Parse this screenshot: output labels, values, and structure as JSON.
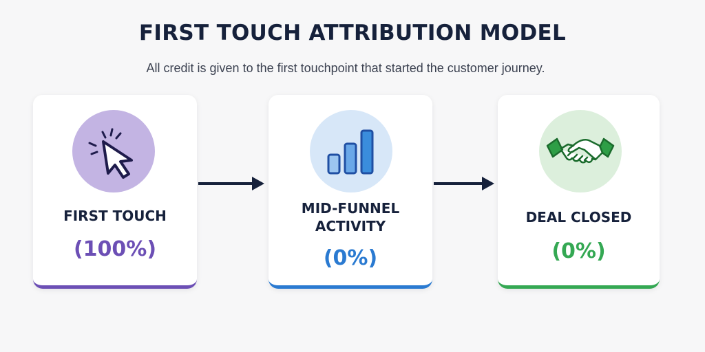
{
  "title": "FIRST TOUCH ATTRIBUTION MODEL",
  "subtitle": "All credit is given to the first touchpoint that started the customer journey.",
  "stages": [
    {
      "label": "FIRST TOUCH",
      "value": "(100%)",
      "icon": "cursor-click-icon",
      "color": "#6c4fb5",
      "circle_color": "#c3b4e3"
    },
    {
      "label_lines": [
        "MID-FUNNEL",
        "ACTIVITY"
      ],
      "value": "(0%)",
      "icon": "bar-chart-icon",
      "color": "#2a7ad1",
      "circle_color": "#d7e7f8"
    },
    {
      "label": "DEAL CLOSED",
      "value": "(0%)",
      "icon": "handshake-icon",
      "color": "#34a853",
      "circle_color": "#dcefdc"
    }
  ],
  "arrow_color": "#16213b"
}
